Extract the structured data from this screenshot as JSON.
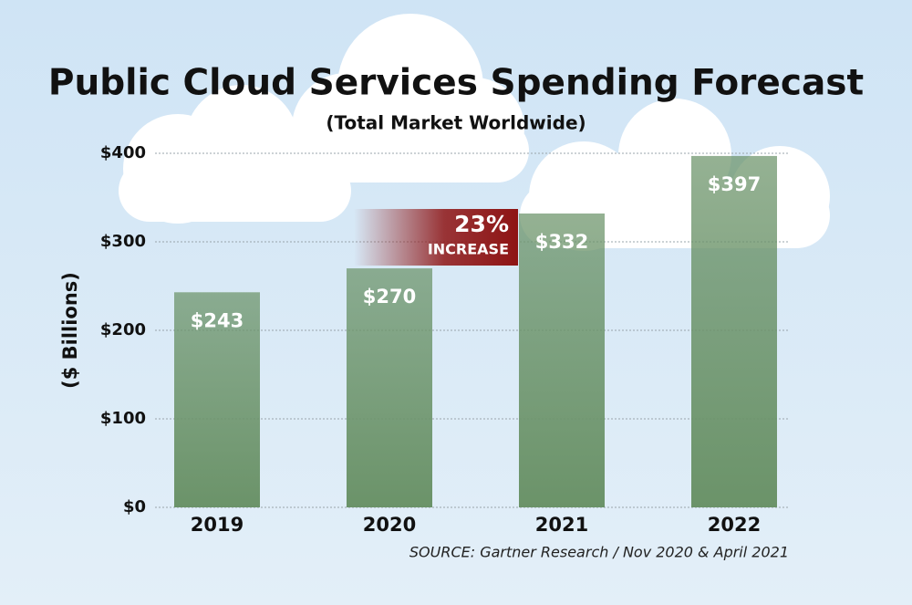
{
  "chart_data": {
    "type": "bar",
    "title": "Public Cloud Services Spending Forecast",
    "subtitle": "(Total Market Worldwide)",
    "y_label": "($ Billions)",
    "categories": [
      "2019",
      "2020",
      "2021",
      "2022"
    ],
    "values": [
      243,
      270,
      332,
      397
    ],
    "value_labels": [
      "$243",
      "$270",
      "$332",
      "$397"
    ],
    "color": "#6b9369",
    "ylim": [
      0,
      400
    ],
    "yticks": [
      {
        "value": 0,
        "label": "$0"
      },
      {
        "value": 100,
        "label": "$100"
      },
      {
        "value": 200,
        "label": "$200"
      },
      {
        "value": 300,
        "label": "$300"
      },
      {
        "value": 400,
        "label": "$400"
      }
    ],
    "grid": true,
    "annotation": {
      "text": "23%",
      "subtext": "INCREASE",
      "color": "#8e1414"
    },
    "source": "SOURCE: Gartner Research / Nov 2020 & April 2021"
  }
}
